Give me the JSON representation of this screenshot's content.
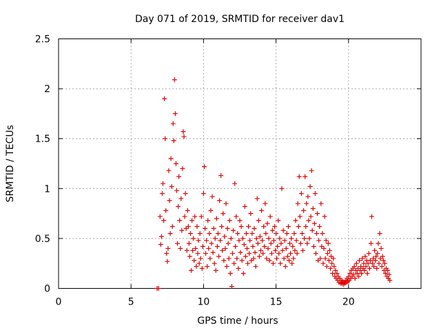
{
  "chart_data": {
    "type": "scatter",
    "title": "Day 071 of 2019, SRMTID for receiver dav1",
    "xlabel": "GPS time / hours",
    "ylabel": "SRMTID / TECUs",
    "xlim": [
      0,
      25
    ],
    "ylim": [
      0,
      2.5
    ],
    "xticks": [
      0,
      5,
      10,
      15,
      20
    ],
    "yticks": [
      0,
      0.5,
      1,
      1.5,
      2,
      2.5
    ],
    "grid": true,
    "marker": "+",
    "color": "#e00000",
    "series": [
      {
        "name": "dav1",
        "points": [
          [
            6.8,
            0.0
          ],
          [
            6.9,
            0.0
          ],
          [
            7.0,
            0.72
          ],
          [
            7.05,
            0.44
          ],
          [
            7.1,
            0.52
          ],
          [
            7.15,
            0.95
          ],
          [
            7.2,
            1.05
          ],
          [
            7.25,
            0.68
          ],
          [
            7.3,
            1.9
          ],
          [
            7.35,
            1.5
          ],
          [
            7.4,
            0.78
          ],
          [
            7.45,
            0.35
          ],
          [
            7.5,
            0.27
          ],
          [
            7.55,
            0.4
          ],
          [
            7.6,
            1.18
          ],
          [
            7.65,
            0.88
          ],
          [
            7.7,
            0.55
          ],
          [
            7.75,
            1.3
          ],
          [
            7.8,
            1.02
          ],
          [
            7.85,
            0.62
          ],
          [
            7.9,
            1.65
          ],
          [
            7.95,
            1.48
          ],
          [
            8.0,
            2.09
          ],
          [
            8.05,
            1.75
          ],
          [
            8.1,
            1.25
          ],
          [
            8.15,
            0.98
          ],
          [
            8.2,
            0.45
          ],
          [
            8.25,
            0.82
          ],
          [
            8.3,
            1.12
          ],
          [
            8.35,
            0.68
          ],
          [
            8.4,
            0.4
          ],
          [
            8.45,
            0.9
          ],
          [
            8.5,
            0.58
          ],
          [
            8.55,
            1.2
          ],
          [
            8.6,
            1.57
          ],
          [
            8.65,
            1.52
          ],
          [
            8.7,
            0.72
          ],
          [
            8.75,
            0.95
          ],
          [
            8.8,
            0.6
          ],
          [
            8.85,
            0.38
          ],
          [
            8.9,
            0.78
          ],
          [
            8.95,
            0.62
          ],
          [
            9.0,
            0.45
          ],
          [
            9.05,
            0.32
          ],
          [
            9.1,
            0.55
          ],
          [
            9.15,
            0.18
          ],
          [
            9.2,
            0.68
          ],
          [
            9.25,
            0.38
          ],
          [
            9.3,
            0.5
          ],
          [
            9.35,
            0.28
          ],
          [
            9.4,
            0.72
          ],
          [
            9.45,
            0.4
          ],
          [
            9.5,
            0.22
          ],
          [
            9.55,
            0.62
          ],
          [
            9.6,
            0.35
          ],
          [
            9.65,
            0.48
          ],
          [
            9.7,
            0.25
          ],
          [
            9.75,
            0.55
          ],
          [
            9.8,
            0.3
          ],
          [
            9.85,
            0.72
          ],
          [
            9.9,
            0.2
          ],
          [
            9.95,
            0.42
          ],
          [
            10.0,
            0.95
          ],
          [
            10.05,
            1.22
          ],
          [
            10.1,
            0.6
          ],
          [
            10.15,
            0.35
          ],
          [
            10.2,
            0.48
          ],
          [
            10.25,
            0.22
          ],
          [
            10.3,
            0.68
          ],
          [
            10.35,
            0.4
          ],
          [
            10.4,
            0.55
          ],
          [
            10.45,
            0.3
          ],
          [
            10.5,
            0.78
          ],
          [
            10.55,
            0.45
          ],
          [
            10.6,
            0.92
          ],
          [
            10.65,
            0.36
          ],
          [
            10.7,
            0.6
          ],
          [
            10.75,
            0.25
          ],
          [
            10.8,
            0.5
          ],
          [
            10.85,
            0.18
          ],
          [
            10.9,
            0.7
          ],
          [
            10.95,
            0.42
          ],
          [
            11.0,
            0.55
          ],
          [
            11.05,
            0.32
          ],
          [
            11.1,
            0.88
          ],
          [
            11.15,
            0.48
          ],
          [
            11.2,
            1.13
          ],
          [
            11.25,
            0.62
          ],
          [
            11.3,
            0.38
          ],
          [
            11.35,
            0.75
          ],
          [
            11.4,
            0.28
          ],
          [
            11.45,
            0.52
          ],
          [
            11.5,
            0.4
          ],
          [
            11.55,
            0.85
          ],
          [
            11.6,
            0.22
          ],
          [
            11.65,
            0.6
          ],
          [
            11.7,
            0.45
          ],
          [
            11.75,
            0.3
          ],
          [
            11.8,
            0.68
          ],
          [
            11.85,
            0.15
          ],
          [
            11.9,
            0.5
          ],
          [
            11.95,
            0.02
          ],
          [
            12.0,
            0.35
          ],
          [
            12.05,
            0.58
          ],
          [
            12.1,
            0.25
          ],
          [
            12.15,
            1.05
          ],
          [
            12.2,
            0.42
          ],
          [
            12.25,
            0.72
          ],
          [
            12.3,
            0.3
          ],
          [
            12.35,
            0.55
          ],
          [
            12.4,
            0.2
          ],
          [
            12.45,
            0.48
          ],
          [
            12.5,
            0.68
          ],
          [
            12.55,
            0.36
          ],
          [
            12.6,
            0.62
          ],
          [
            12.65,
            0.28
          ],
          [
            12.7,
            0.5
          ],
          [
            12.75,
            0.15
          ],
          [
            12.8,
            0.44
          ],
          [
            12.85,
            0.82
          ],
          [
            12.9,
            0.32
          ],
          [
            12.95,
            0.55
          ],
          [
            13.0,
            0.4
          ],
          [
            13.05,
            0.25
          ],
          [
            13.1,
            0.62
          ],
          [
            13.15,
            0.35
          ],
          [
            13.2,
            0.48
          ],
          [
            13.25,
            0.75
          ],
          [
            13.3,
            0.28
          ],
          [
            13.35,
            0.55
          ],
          [
            13.4,
            0.42
          ],
          [
            13.45,
            0.3
          ],
          [
            13.5,
            0.6
          ],
          [
            13.55,
            0.36
          ],
          [
            13.6,
            0.22
          ],
          [
            13.65,
            0.5
          ],
          [
            13.7,
            0.9
          ],
          [
            13.75,
            0.45
          ],
          [
            13.8,
            0.68
          ],
          [
            13.85,
            0.32
          ],
          [
            13.9,
            0.52
          ],
          [
            13.95,
            0.38
          ],
          [
            14.0,
            0.78
          ],
          [
            14.05,
            0.48
          ],
          [
            14.1,
            0.35
          ],
          [
            14.15,
            0.62
          ],
          [
            14.2,
            0.42
          ],
          [
            14.25,
            0.85
          ],
          [
            14.3,
            0.55
          ],
          [
            14.35,
            0.3
          ],
          [
            14.4,
            0.65
          ],
          [
            14.45,
            0.4
          ],
          [
            14.5,
            0.5
          ],
          [
            14.55,
            0.28
          ],
          [
            14.6,
            0.72
          ],
          [
            14.65,
            0.45
          ],
          [
            14.7,
            0.35
          ],
          [
            14.75,
            0.58
          ],
          [
            14.8,
            0.25
          ],
          [
            14.85,
            0.48
          ],
          [
            14.9,
            0.62
          ],
          [
            14.95,
            0.38
          ],
          [
            15.0,
            0.55
          ],
          [
            15.05,
            0.3
          ],
          [
            15.1,
            0.42
          ],
          [
            15.15,
            0.68
          ],
          [
            15.2,
            0.35
          ],
          [
            15.25,
            0.5
          ],
          [
            15.3,
            0.25
          ],
          [
            15.35,
            0.45
          ],
          [
            15.4,
            1.0
          ],
          [
            15.45,
            0.38
          ],
          [
            15.5,
            0.58
          ],
          [
            15.55,
            0.3
          ],
          [
            15.6,
            0.48
          ],
          [
            15.65,
            0.22
          ],
          [
            15.7,
            0.4
          ],
          [
            15.75,
            0.55
          ],
          [
            15.8,
            0.32
          ],
          [
            15.85,
            0.62
          ],
          [
            15.9,
            0.28
          ],
          [
            15.95,
            0.45
          ],
          [
            16.0,
            0.35
          ],
          [
            16.05,
            0.5
          ],
          [
            16.1,
            0.25
          ],
          [
            16.15,
            0.42
          ],
          [
            16.2,
            0.3
          ],
          [
            16.25,
            0.55
          ],
          [
            16.3,
            0.38
          ],
          [
            16.35,
            0.68
          ],
          [
            16.4,
            0.48
          ],
          [
            16.45,
            0.35
          ],
          [
            16.5,
            0.85
          ],
          [
            16.55,
            0.62
          ],
          [
            16.6,
            1.12
          ],
          [
            16.65,
            0.72
          ],
          [
            16.7,
            0.45
          ],
          [
            16.75,
            0.95
          ],
          [
            16.8,
            0.55
          ],
          [
            16.85,
            0.38
          ],
          [
            16.9,
            0.78
          ],
          [
            16.95,
            0.5
          ],
          [
            17.0,
            1.12
          ],
          [
            17.05,
            0.62
          ],
          [
            17.1,
            0.85
          ],
          [
            17.15,
            0.45
          ],
          [
            17.2,
            0.92
          ],
          [
            17.25,
            0.68
          ],
          [
            17.3,
            0.5
          ],
          [
            17.35,
            1.02
          ],
          [
            17.4,
            0.72
          ],
          [
            17.45,
            1.18
          ],
          [
            17.5,
            0.58
          ],
          [
            17.55,
            0.8
          ],
          [
            17.6,
            0.42
          ],
          [
            17.65,
            0.65
          ],
          [
            17.7,
            0.95
          ],
          [
            17.75,
            0.35
          ],
          [
            17.8,
            0.55
          ],
          [
            17.85,
            0.75
          ],
          [
            17.9,
            0.28
          ],
          [
            17.95,
            0.48
          ],
          [
            18.0,
            0.62
          ],
          [
            18.05,
            0.3
          ],
          [
            18.1,
            0.85
          ],
          [
            18.15,
            0.42
          ],
          [
            18.2,
            0.55
          ],
          [
            18.25,
            0.25
          ],
          [
            18.3,
            0.4
          ],
          [
            18.35,
            0.72
          ],
          [
            18.4,
            0.3
          ],
          [
            18.45,
            0.48
          ],
          [
            18.5,
            0.22
          ],
          [
            18.55,
            0.35
          ],
          [
            18.6,
            0.45
          ],
          [
            18.65,
            0.28
          ],
          [
            18.7,
            0.38
          ],
          [
            18.75,
            0.2
          ],
          [
            18.8,
            0.32
          ],
          [
            18.85,
            0.25
          ],
          [
            18.9,
            0.15
          ],
          [
            18.95,
            0.3
          ],
          [
            19.0,
            0.22
          ],
          [
            19.05,
            0.12
          ],
          [
            19.1,
            0.18
          ],
          [
            19.15,
            0.1
          ],
          [
            19.2,
            0.15
          ],
          [
            19.25,
            0.08
          ],
          [
            19.3,
            0.12
          ],
          [
            19.35,
            0.06
          ],
          [
            19.4,
            0.1
          ],
          [
            19.45,
            0.05
          ],
          [
            19.5,
            0.08
          ],
          [
            19.55,
            0.05
          ],
          [
            19.6,
            0.07
          ],
          [
            19.65,
            0.04
          ],
          [
            19.7,
            0.06
          ],
          [
            19.75,
            0.05
          ],
          [
            19.8,
            0.08
          ],
          [
            19.85,
            0.06
          ],
          [
            19.9,
            0.1
          ],
          [
            19.95,
            0.07
          ],
          [
            20.0,
            0.12
          ],
          [
            20.05,
            0.08
          ],
          [
            20.1,
            0.15
          ],
          [
            20.15,
            0.1
          ],
          [
            20.2,
            0.18
          ],
          [
            20.25,
            0.12
          ],
          [
            20.3,
            0.2
          ],
          [
            20.35,
            0.14
          ],
          [
            20.4,
            0.22
          ],
          [
            20.45,
            0.1
          ],
          [
            20.5,
            0.18
          ],
          [
            20.55,
            0.25
          ],
          [
            20.6,
            0.15
          ],
          [
            20.65,
            0.2
          ],
          [
            20.7,
            0.12
          ],
          [
            20.75,
            0.28
          ],
          [
            20.8,
            0.18
          ],
          [
            20.85,
            0.22
          ],
          [
            20.9,
            0.15
          ],
          [
            20.95,
            0.3
          ],
          [
            21.0,
            0.2
          ],
          [
            21.05,
            0.25
          ],
          [
            21.1,
            0.18
          ],
          [
            21.15,
            0.32
          ],
          [
            21.2,
            0.22
          ],
          [
            21.25,
            0.28
          ],
          [
            21.3,
            0.15
          ],
          [
            21.35,
            0.25
          ],
          [
            21.4,
            0.35
          ],
          [
            21.45,
            0.2
          ],
          [
            21.5,
            0.28
          ],
          [
            21.55,
            0.45
          ],
          [
            21.6,
            0.72
          ],
          [
            21.65,
            0.25
          ],
          [
            21.7,
            0.3
          ],
          [
            21.75,
            0.22
          ],
          [
            21.8,
            0.38
          ],
          [
            21.85,
            0.28
          ],
          [
            21.9,
            0.32
          ],
          [
            21.95,
            0.2
          ],
          [
            22.0,
            0.35
          ],
          [
            22.05,
            0.45
          ],
          [
            22.1,
            0.25
          ],
          [
            22.15,
            0.55
          ],
          [
            22.2,
            0.3
          ],
          [
            22.25,
            0.4
          ],
          [
            22.3,
            0.22
          ],
          [
            22.35,
            0.32
          ],
          [
            22.4,
            0.28
          ],
          [
            22.45,
            0.18
          ],
          [
            22.5,
            0.25
          ],
          [
            22.55,
            0.15
          ],
          [
            22.6,
            0.2
          ],
          [
            22.65,
            0.12
          ],
          [
            22.7,
            0.18
          ],
          [
            22.75,
            0.1
          ],
          [
            22.8,
            0.14
          ],
          [
            22.85,
            0.08
          ]
        ]
      }
    ]
  }
}
